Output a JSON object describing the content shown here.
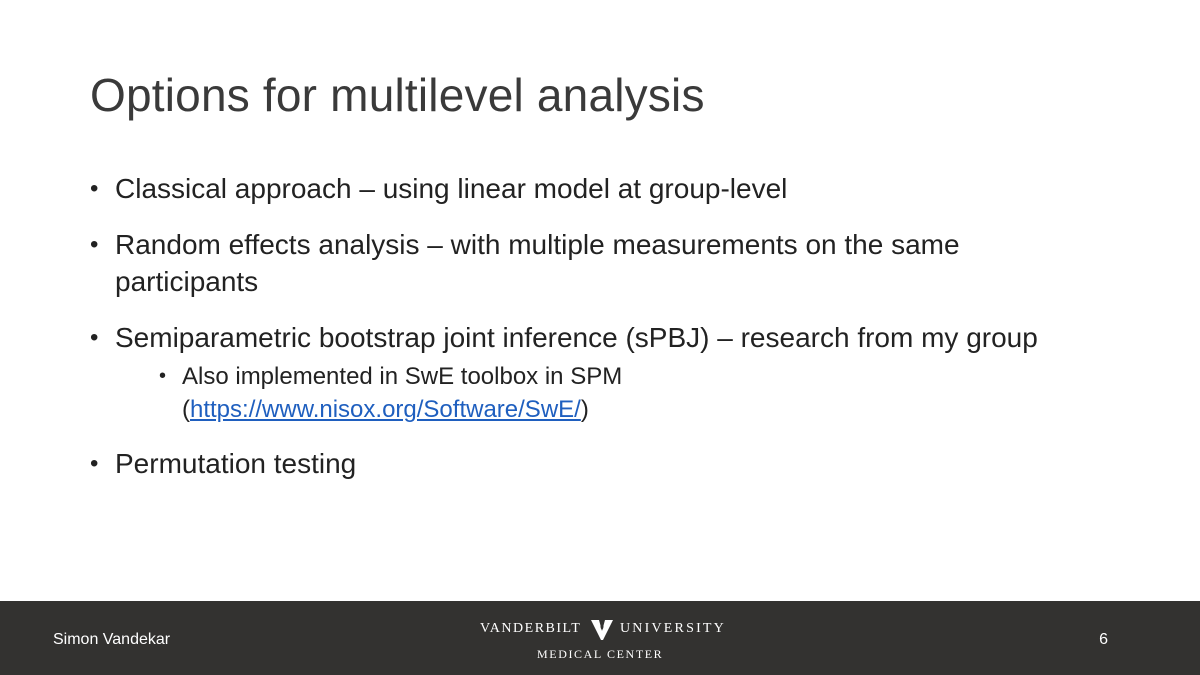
{
  "slide": {
    "title": "Options for multilevel analysis",
    "bullets": [
      {
        "text": "Classical approach – using linear model at group-level"
      },
      {
        "text": "Random effects analysis – with multiple measurements on the same participants"
      },
      {
        "text": "Semiparametric bootstrap joint inference (sPBJ) – research from my group"
      },
      {
        "text": "Permutation testing"
      }
    ],
    "sub_bullet": {
      "text": "Also implemented in SwE toolbox in SPM",
      "link_open": "(",
      "link": "https://www.nisox.org/Software/SwE/",
      "link_close": ")"
    }
  },
  "footer": {
    "author": "Simon Vandekar",
    "logo_left": "VANDERBILT",
    "logo_right": "UNIVERSITY",
    "logo_sub": "MEDICAL CENTER",
    "page_number": "6"
  },
  "colors": {
    "footer_bg": "#333230",
    "link": "#1f5fbf"
  },
  "icons": {
    "bullet": "•",
    "logo_mark": "vanderbilt-v-oak-leaf-icon"
  }
}
